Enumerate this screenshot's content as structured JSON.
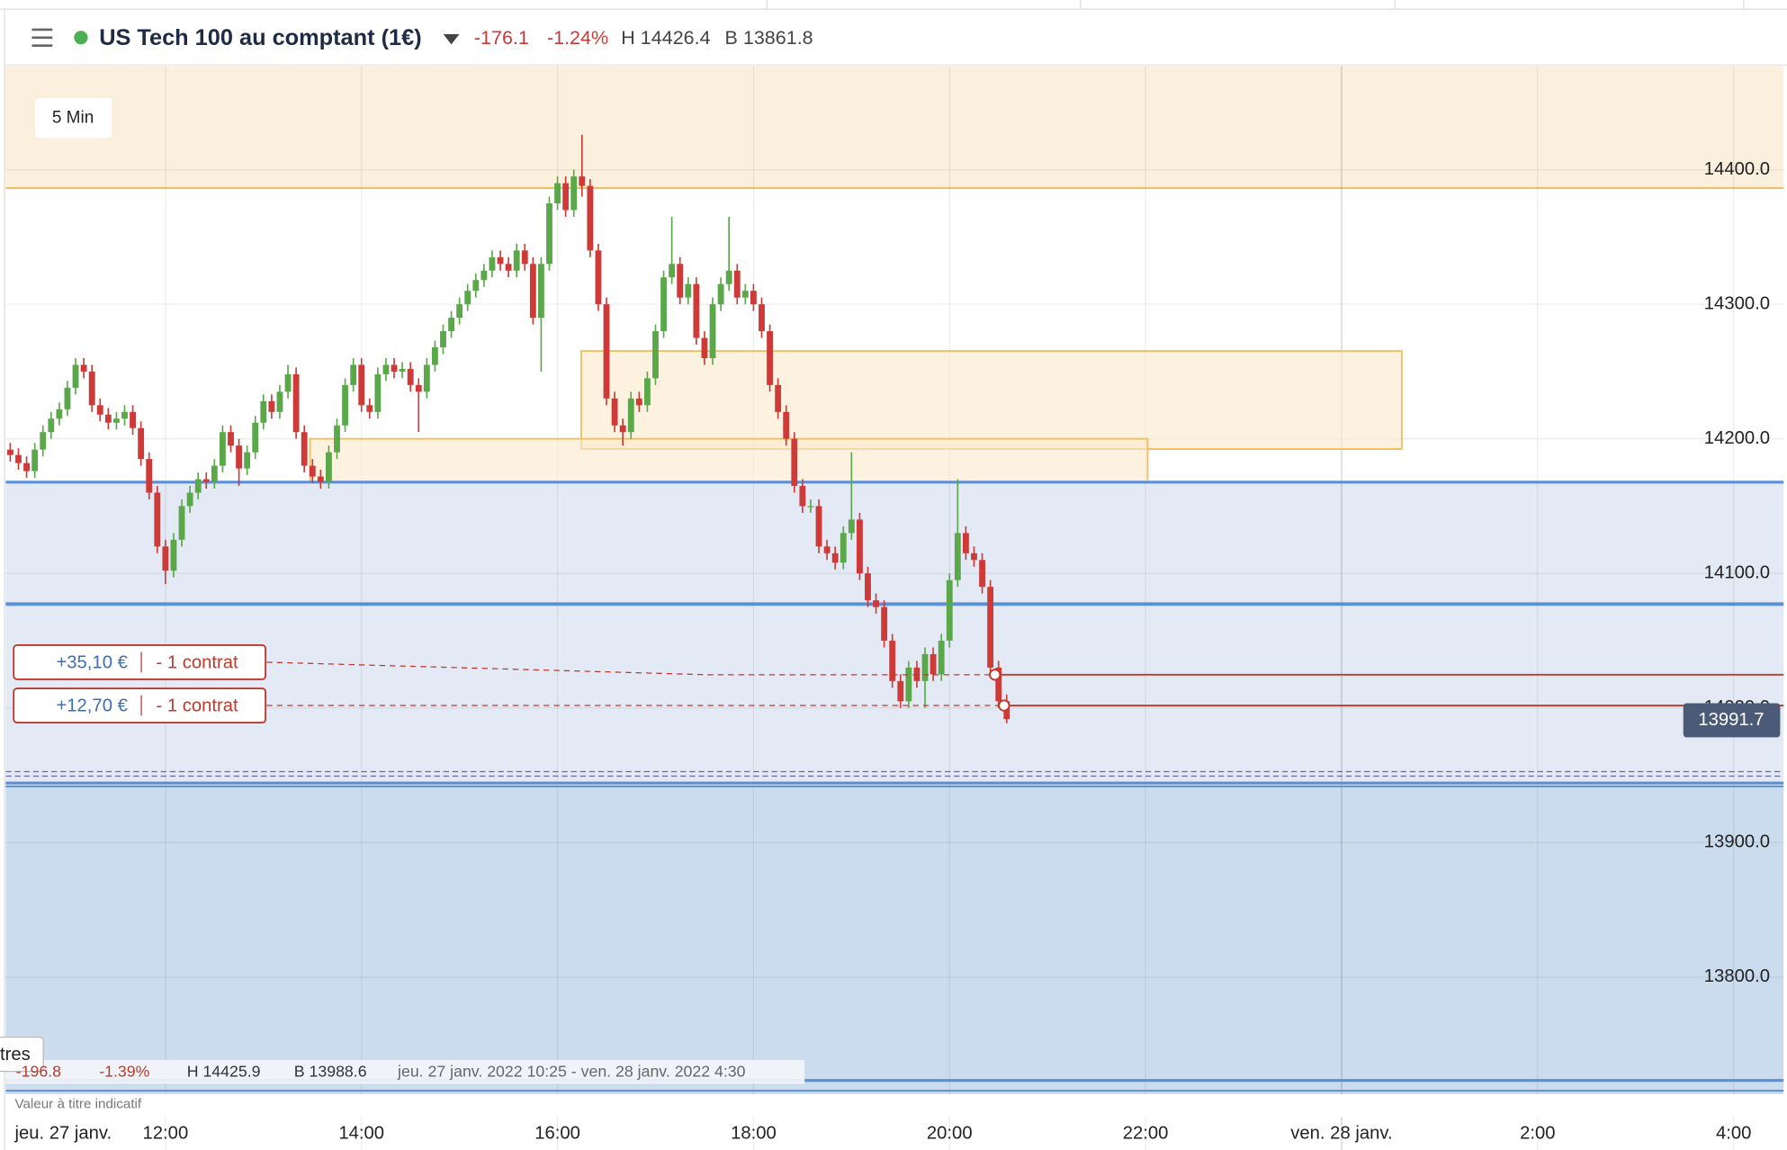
{
  "header": {
    "title": "US Tech 100 au comptant (1€)",
    "change": "-176.1",
    "change_pct": "-1.24%",
    "high": "H 14426.4",
    "low": "B 13861.8"
  },
  "chart_data": {
    "type": "candlestick",
    "interval": "5 Min",
    "x": [
      "10:25",
      "10:30",
      "10:35",
      "10:40",
      "10:45",
      "10:50",
      "10:55",
      "11:00",
      "11:05",
      "11:10",
      "11:15",
      "11:20",
      "11:25",
      "11:30",
      "11:35",
      "11:40",
      "11:45",
      "11:50",
      "11:55",
      "12:00",
      "12:05",
      "12:10",
      "12:15",
      "12:20",
      "12:25",
      "12:30",
      "12:35",
      "12:40",
      "12:45",
      "12:50",
      "12:55",
      "13:00",
      "13:05",
      "13:10",
      "13:15",
      "13:20",
      "13:25",
      "13:30",
      "13:35",
      "13:40",
      "13:45",
      "13:50",
      "13:55",
      "14:00",
      "14:05",
      "14:10",
      "14:15",
      "14:20",
      "14:25",
      "14:30",
      "14:35",
      "14:40",
      "14:45",
      "14:50",
      "14:55",
      "15:00",
      "15:05",
      "15:10",
      "15:15",
      "15:20",
      "15:25",
      "15:30",
      "15:35",
      "15:40",
      "15:45",
      "15:50",
      "15:55",
      "16:00",
      "16:05",
      "16:10",
      "16:15",
      "16:20",
      "16:25",
      "16:30",
      "16:35",
      "16:40",
      "16:45",
      "16:50",
      "16:55",
      "17:00",
      "17:05",
      "17:10",
      "17:15",
      "17:20",
      "17:25",
      "17:30",
      "17:35",
      "17:40",
      "17:45",
      "17:50",
      "17:55",
      "18:00",
      "18:05",
      "18:10",
      "18:15",
      "18:20",
      "18:25",
      "18:30",
      "18:35",
      "18:40",
      "18:45",
      "18:50",
      "18:55",
      "19:00",
      "19:05",
      "19:10",
      "19:15",
      "19:20",
      "19:25",
      "19:30",
      "19:35",
      "19:40",
      "19:45",
      "19:50",
      "19:55",
      "20:00",
      "20:05",
      "20:10",
      "20:15",
      "20:20",
      "20:25",
      "20:30",
      "20:35"
    ],
    "open": [
      14192,
      14188,
      14182,
      14176,
      14192,
      14205,
      14215,
      14222,
      14238,
      14255,
      14250,
      14225,
      14218,
      14212,
      14215,
      14220,
      14208,
      14185,
      14160,
      14120,
      14102,
      14125,
      14150,
      14160,
      14170,
      14168,
      14180,
      14205,
      14195,
      14178,
      14190,
      14212,
      14228,
      14220,
      14235,
      14248,
      14205,
      14180,
      14172,
      14168,
      14190,
      14210,
      14240,
      14255,
      14225,
      14220,
      14248,
      14255,
      14250,
      14252,
      14240,
      14235,
      14255,
      14268,
      14280,
      14290,
      14300,
      14310,
      14318,
      14325,
      14335,
      14330,
      14325,
      14340,
      14330,
      14290,
      14330,
      14375,
      14390,
      14370,
      14395,
      14388,
      14340,
      14300,
      14230,
      14210,
      14205,
      14230,
      14225,
      14245,
      14280,
      14320,
      14330,
      14305,
      14315,
      14275,
      14260,
      14300,
      14315,
      14325,
      14305,
      14310,
      14300,
      14280,
      14240,
      14220,
      14200,
      14165,
      14150,
      14150,
      14120,
      14115,
      14108,
      14130,
      14140,
      14100,
      14080,
      14075,
      14050,
      14020,
      14005,
      14030,
      14020,
      14040,
      14025,
      14050,
      14095,
      14130,
      14115,
      14110,
      14090,
      14030,
      14005
    ],
    "high": [
      14197,
      14193,
      14187,
      14197,
      14210,
      14220,
      14227,
      14243,
      14260,
      14260,
      14255,
      14230,
      14223,
      14220,
      14225,
      14225,
      14213,
      14190,
      14165,
      14125,
      14130,
      14155,
      14165,
      14175,
      14175,
      14185,
      14210,
      14210,
      14200,
      14195,
      14217,
      14233,
      14233,
      14240,
      14255,
      14253,
      14210,
      14185,
      14177,
      14195,
      14215,
      14245,
      14260,
      14260,
      14230,
      14253,
      14260,
      14260,
      14257,
      14257,
      14245,
      14260,
      14273,
      14285,
      14295,
      14305,
      14315,
      14323,
      14330,
      14340,
      14340,
      14335,
      14345,
      14345,
      14335,
      14335,
      14380,
      14395,
      14395,
      14400,
      14425.9,
      14393,
      14345,
      14305,
      14235,
      14215,
      14235,
      14235,
      14250,
      14285,
      14325,
      14365,
      14335,
      14320,
      14320,
      14280,
      14305,
      14320,
      14365,
      14330,
      14315,
      14315,
      14305,
      14285,
      14245,
      14225,
      14205,
      14170,
      14155,
      14155,
      14125,
      14120,
      14135,
      14190,
      14145,
      14105,
      14085,
      14080,
      14055,
      14025,
      14035,
      14035,
      14045,
      14045,
      14055,
      14100,
      14170,
      14135,
      14120,
      14115,
      14095,
      14035,
      14010
    ],
    "low": [
      14183,
      14177,
      14171,
      14171,
      14187,
      14200,
      14210,
      14217,
      14233,
      14245,
      14220,
      14213,
      14207,
      14207,
      14210,
      14203,
      14180,
      14155,
      14115,
      14092,
      14097,
      14120,
      14145,
      14155,
      14163,
      14163,
      14175,
      14190,
      14165,
      14173,
      14185,
      14207,
      14215,
      14215,
      14230,
      14200,
      14175,
      14167,
      14163,
      14163,
      14185,
      14205,
      14235,
      14220,
      14215,
      14215,
      14243,
      14245,
      14245,
      14235,
      14205,
      14230,
      14250,
      14263,
      14275,
      14285,
      14295,
      14305,
      14313,
      14320,
      14325,
      14320,
      14320,
      14325,
      14285,
      14250,
      14325,
      14370,
      14365,
      14365,
      14380,
      14335,
      14295,
      14225,
      14205,
      14195,
      14200,
      14220,
      14220,
      14240,
      14275,
      14315,
      14300,
      14300,
      14270,
      14255,
      14255,
      14295,
      14310,
      14300,
      14300,
      14295,
      14275,
      14235,
      14215,
      14195,
      14160,
      14145,
      14145,
      14115,
      14110,
      14103,
      14103,
      14125,
      14095,
      14075,
      14070,
      14045,
      14015,
      14000,
      14000,
      14015,
      14000,
      14020,
      14020,
      14045,
      14090,
      14110,
      14105,
      14085,
      14025,
      14000,
      13988.6
    ],
    "close": [
      14188,
      14182,
      14176,
      14192,
      14205,
      14215,
      14222,
      14238,
      14255,
      14250,
      14225,
      14218,
      14212,
      14215,
      14220,
      14208,
      14185,
      14160,
      14120,
      14102,
      14125,
      14150,
      14160,
      14170,
      14168,
      14180,
      14205,
      14195,
      14178,
      14190,
      14212,
      14228,
      14220,
      14235,
      14248,
      14205,
      14180,
      14172,
      14168,
      14190,
      14210,
      14240,
      14255,
      14225,
      14220,
      14248,
      14255,
      14250,
      14252,
      14240,
      14235,
      14255,
      14268,
      14280,
      14290,
      14300,
      14310,
      14318,
      14325,
      14335,
      14330,
      14325,
      14340,
      14330,
      14290,
      14330,
      14375,
      14390,
      14370,
      14395,
      14388,
      14340,
      14300,
      14230,
      14210,
      14205,
      14230,
      14225,
      14245,
      14280,
      14320,
      14330,
      14305,
      14315,
      14275,
      14260,
      14300,
      14315,
      14325,
      14305,
      14310,
      14300,
      14280,
      14240,
      14220,
      14200,
      14165,
      14150,
      14150,
      14120,
      14115,
      14108,
      14130,
      14140,
      14100,
      14080,
      14075,
      14050,
      14020,
      14005,
      14030,
      14020,
      14040,
      14025,
      14050,
      14095,
      14130,
      14115,
      14110,
      14090,
      14030,
      14005,
      13991.7
    ],
    "up_color": "#5ba84b",
    "down_color": "#cd3a38",
    "xlim": [
      10.37,
      28.51
    ],
    "xticks": [
      {
        "value": 11,
        "label": "jeu. 27 janv."
      },
      {
        "value": 12,
        "label": "12:00"
      },
      {
        "value": 14,
        "label": "14:00"
      },
      {
        "value": 16,
        "label": "16:00"
      },
      {
        "value": 18,
        "label": "18:00"
      },
      {
        "value": 20,
        "label": "20:00"
      },
      {
        "value": 22,
        "label": "22:00"
      },
      {
        "value": 24,
        "label": "ven. 28 janv."
      },
      {
        "value": 26,
        "label": "2:00"
      },
      {
        "value": 28,
        "label": "4:00"
      }
    ],
    "ylim": [
      13713,
      14477
    ],
    "yticks": [
      {
        "value": 13800,
        "label": "13800.0"
      },
      {
        "value": 13900,
        "label": "13900.0"
      },
      {
        "value": 14000,
        "label": "14000.0"
      },
      {
        "value": 14100,
        "label": "14100.0"
      },
      {
        "value": 14200,
        "label": "14200.0"
      },
      {
        "value": 14300,
        "label": "14300.0"
      },
      {
        "value": 14400,
        "label": "14400.0"
      }
    ],
    "grid": true,
    "last_price_color": "#4b5a77"
  },
  "positions": [
    {
      "pnl": "+35,10 €",
      "size": "- 1 contrat"
    },
    {
      "pnl": "+12,70 €",
      "size": "- 1 contrat"
    }
  ],
  "footer": {
    "button": "tres",
    "change": "-196.8",
    "change_pct": "-1.39%",
    "high": "H 14425.9",
    "low": "B 13988.6",
    "range": "jeu. 27 janv. 2022 10:25 - ven. 28 janv. 2022 4:30",
    "note": "Valeur à titre indicatif"
  }
}
